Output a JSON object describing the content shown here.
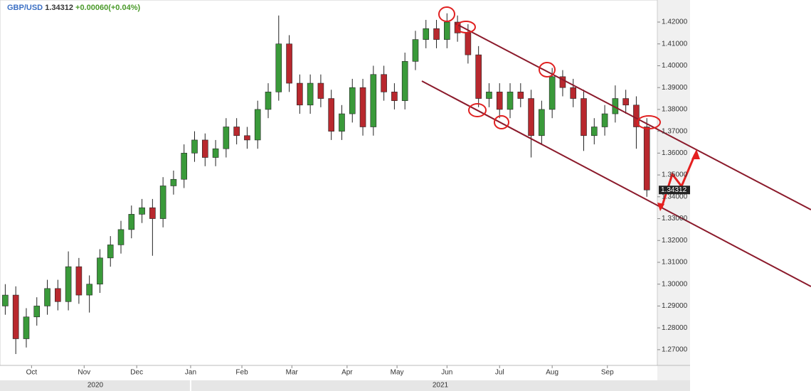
{
  "chart_data": {
    "type": "candlestick",
    "symbol": "GBP/USD",
    "price": "1.34312",
    "change": "+0.00060(+0.04%)",
    "up_color": "#3a9a3a",
    "down_color": "#b8282e",
    "xlim": [
      0,
      250
    ],
    "xticks": [
      {
        "value": 12,
        "label": "Oct"
      },
      {
        "value": 32,
        "label": "Nov"
      },
      {
        "value": 52,
        "label": "Dec"
      },
      {
        "value": 72.5,
        "label": "Jan"
      },
      {
        "value": 92,
        "label": "Feb"
      },
      {
        "value": 111,
        "label": "Mar"
      },
      {
        "value": 132,
        "label": "Apr"
      },
      {
        "value": 151,
        "label": "May"
      },
      {
        "value": 170,
        "label": "Jun"
      },
      {
        "value": 190,
        "label": "Jul"
      },
      {
        "value": 210,
        "label": "Aug"
      },
      {
        "value": 231,
        "label": "Sep"
      }
    ],
    "years": [
      "2020",
      "2021"
    ],
    "ylim": [
      1.2628,
      1.4301
    ],
    "yticks": [
      {
        "value": 1.27,
        "label": "1.27000"
      },
      {
        "value": 1.28,
        "label": "1.28000"
      },
      {
        "value": 1.29,
        "label": "1.29000"
      },
      {
        "value": 1.3,
        "label": "1.30000"
      },
      {
        "value": 1.31,
        "label": "1.31000"
      },
      {
        "value": 1.32,
        "label": "1.32000"
      },
      {
        "value": 1.33,
        "label": "1.33000"
      },
      {
        "value": 1.34,
        "label": "1.34000"
      },
      {
        "value": 1.35,
        "label": "1.35000"
      },
      {
        "value": 1.36,
        "label": "1.36000"
      },
      {
        "value": 1.37,
        "label": "1.37000"
      },
      {
        "value": 1.38,
        "label": "1.38000"
      },
      {
        "value": 1.39,
        "label": "1.39000"
      },
      {
        "value": 1.4,
        "label": "1.40000"
      },
      {
        "value": 1.41,
        "label": "1.41000"
      },
      {
        "value": 1.42,
        "label": "1.42000"
      }
    ],
    "x": [
      2,
      6,
      10,
      14,
      18,
      22,
      26,
      30,
      34,
      38,
      42,
      46,
      50,
      54,
      58,
      62,
      66,
      70,
      74,
      78,
      82,
      86,
      90,
      94,
      98,
      102,
      106,
      110,
      114,
      118,
      122,
      126,
      130,
      134,
      138,
      142,
      146,
      150,
      154,
      158,
      162,
      166,
      170,
      174,
      178,
      182,
      186,
      190,
      194,
      198,
      202,
      206,
      210,
      214,
      218,
      222,
      226,
      230,
      234,
      238,
      242,
      246
    ],
    "open": [
      1.29,
      1.295,
      1.275,
      1.285,
      1.29,
      1.298,
      1.292,
      1.308,
      1.295,
      1.3,
      1.312,
      1.318,
      1.325,
      1.332,
      1.335,
      1.33,
      1.345,
      1.348,
      1.36,
      1.366,
      1.358,
      1.362,
      1.372,
      1.368,
      1.366,
      1.38,
      1.388,
      1.41,
      1.392,
      1.382,
      1.392,
      1.385,
      1.37,
      1.378,
      1.39,
      1.372,
      1.396,
      1.388,
      1.384,
      1.402,
      1.412,
      1.417,
      1.412,
      1.42,
      1.415,
      1.405,
      1.385,
      1.388,
      1.38,
      1.388,
      1.385,
      1.368,
      1.38,
      1.395,
      1.39,
      1.385,
      1.368,
      1.372,
      1.378,
      1.385,
      1.382,
      1.372
    ],
    "high": [
      1.3,
      1.299,
      1.289,
      1.294,
      1.302,
      1.302,
      1.315,
      1.312,
      1.304,
      1.316,
      1.322,
      1.329,
      1.336,
      1.339,
      1.339,
      1.349,
      1.352,
      1.364,
      1.37,
      1.369,
      1.366,
      1.376,
      1.376,
      1.372,
      1.384,
      1.392,
      1.423,
      1.414,
      1.396,
      1.396,
      1.396,
      1.389,
      1.382,
      1.394,
      1.394,
      1.4,
      1.4,
      1.392,
      1.406,
      1.416,
      1.421,
      1.421,
      1.424,
      1.423,
      1.419,
      1.409,
      1.392,
      1.392,
      1.392,
      1.392,
      1.389,
      1.384,
      1.399,
      1.398,
      1.394,
      1.389,
      1.376,
      1.382,
      1.391,
      1.389,
      1.386,
      1.376
    ],
    "low": [
      1.286,
      1.268,
      1.271,
      1.281,
      1.286,
      1.288,
      1.288,
      1.291,
      1.287,
      1.296,
      1.308,
      1.314,
      1.321,
      1.328,
      1.313,
      1.326,
      1.341,
      1.344,
      1.356,
      1.354,
      1.354,
      1.358,
      1.364,
      1.362,
      1.362,
      1.376,
      1.384,
      1.388,
      1.378,
      1.378,
      1.381,
      1.366,
      1.366,
      1.374,
      1.368,
      1.368,
      1.384,
      1.38,
      1.38,
      1.398,
      1.408,
      1.408,
      1.408,
      1.411,
      1.401,
      1.381,
      1.381,
      1.376,
      1.376,
      1.381,
      1.358,
      1.364,
      1.376,
      1.386,
      1.381,
      1.361,
      1.364,
      1.368,
      1.374,
      1.378,
      1.362,
      1.34
    ],
    "close": [
      1.295,
      1.275,
      1.285,
      1.29,
      1.298,
      1.292,
      1.308,
      1.295,
      1.3,
      1.312,
      1.318,
      1.325,
      1.332,
      1.335,
      1.33,
      1.345,
      1.348,
      1.36,
      1.366,
      1.358,
      1.362,
      1.372,
      1.368,
      1.366,
      1.38,
      1.388,
      1.41,
      1.392,
      1.382,
      1.392,
      1.385,
      1.37,
      1.378,
      1.39,
      1.372,
      1.396,
      1.388,
      1.384,
      1.402,
      1.412,
      1.417,
      1.412,
      1.42,
      1.415,
      1.405,
      1.385,
      1.388,
      1.38,
      1.388,
      1.385,
      1.368,
      1.38,
      1.395,
      1.39,
      1.385,
      1.368,
      1.372,
      1.378,
      1.385,
      1.382,
      1.372,
      1.34312
    ]
  }
}
